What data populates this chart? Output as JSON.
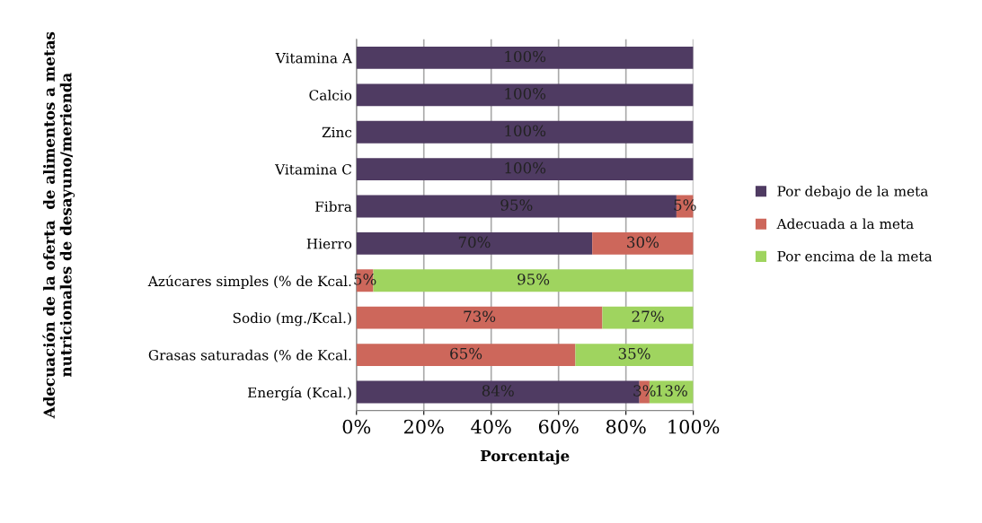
{
  "chart_data": {
    "type": "bar",
    "orientation": "horizontal",
    "stacked": true,
    "ylabel": "Adecuación de la oferta  de alimentos a metas\nnutricionales de desayuno/merienda",
    "xlabel": "Porcentaje",
    "categories": [
      "Vitamina A",
      "Calcio",
      "Zinc",
      "Vitamina C",
      "Fibra",
      "Hierro",
      "Azúcares simples (% de Kcal.",
      "Sodio (mg./Kcal.)",
      "Grasas saturadas (% de Kcal.",
      "Energía (Kcal.)"
    ],
    "series": [
      {
        "name": "Por debajo de la meta",
        "color": "#4f3b62",
        "values": [
          100,
          100,
          100,
          100,
          95,
          70,
          0,
          0,
          0,
          84
        ],
        "value_labels": [
          "100%",
          "100%",
          "100%",
          "100%",
          "95%",
          "70%",
          null,
          null,
          null,
          "84%"
        ]
      },
      {
        "name": "Adecuada a la meta",
        "color": "#cd675b",
        "values": [
          0,
          0,
          0,
          0,
          5,
          30,
          5,
          73,
          65,
          3
        ],
        "value_labels": [
          null,
          null,
          null,
          null,
          "5%",
          "30%",
          "5%",
          "73%",
          "65%",
          "3%"
        ]
      },
      {
        "name": "Por encima de la meta",
        "color": "#9fd45f",
        "values": [
          0,
          0,
          0,
          0,
          0,
          0,
          95,
          27,
          35,
          13
        ],
        "value_labels": [
          null,
          null,
          null,
          null,
          null,
          null,
          "95%",
          "27%",
          "35%",
          "13%"
        ]
      }
    ],
    "xlim": [
      0,
      100
    ],
    "xticks": [
      {
        "value": 0,
        "label": "0%"
      },
      {
        "value": 20,
        "label": "20%"
      },
      {
        "value": 40,
        "label": "40%"
      },
      {
        "value": 60,
        "label": "60%"
      },
      {
        "value": 80,
        "label": "80%"
      },
      {
        "value": 100,
        "label": "100%"
      }
    ],
    "grid": "x",
    "legend": "right"
  }
}
